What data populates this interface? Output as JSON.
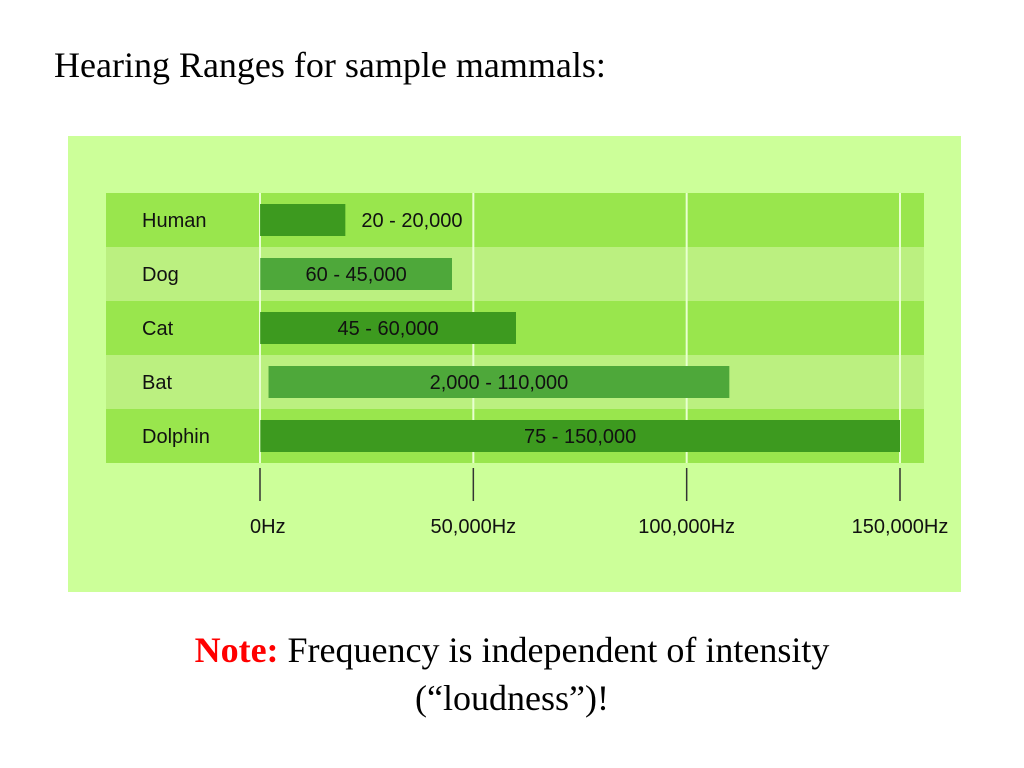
{
  "page": {
    "title": "Hearing Ranges for sample mammals:"
  },
  "note": {
    "label": "Note:",
    "text": "Frequency is independent of intensity",
    "text2": "(“loudness”)!"
  },
  "colors": {
    "panel": "#ccff99",
    "row_dark": "#99e64d",
    "row_light": "#bbf080",
    "bar_dark": "#3d9a1f",
    "bar_light": "#4ea83a",
    "gridline": "#e8ffd0",
    "note_red": "#ff0000"
  },
  "chart_data": {
    "type": "bar",
    "orientation": "horizontal-range",
    "title": "",
    "xlabel": "",
    "ylabel": "",
    "xlim": [
      0,
      150000
    ],
    "xticks": [
      0,
      50000,
      100000,
      150000
    ],
    "xtick_labels": [
      "0Hz",
      "50,000Hz",
      "100,000Hz",
      "150,000Hz"
    ],
    "grid": true,
    "categories": [
      "Human",
      "Dog",
      "Cat",
      "Bat",
      "Dolphin"
    ],
    "ranges": [
      {
        "low": 20,
        "high": 20000
      },
      {
        "low": 60,
        "high": 45000
      },
      {
        "low": 45,
        "high": 60000
      },
      {
        "low": 2000,
        "high": 110000
      },
      {
        "low": 75,
        "high": 150000
      }
    ],
    "data_labels": [
      "20 - 20,000",
      "60 - 45,000",
      "45 - 60,000",
      "2,000 - 110,000",
      "75 - 150,000"
    ]
  }
}
